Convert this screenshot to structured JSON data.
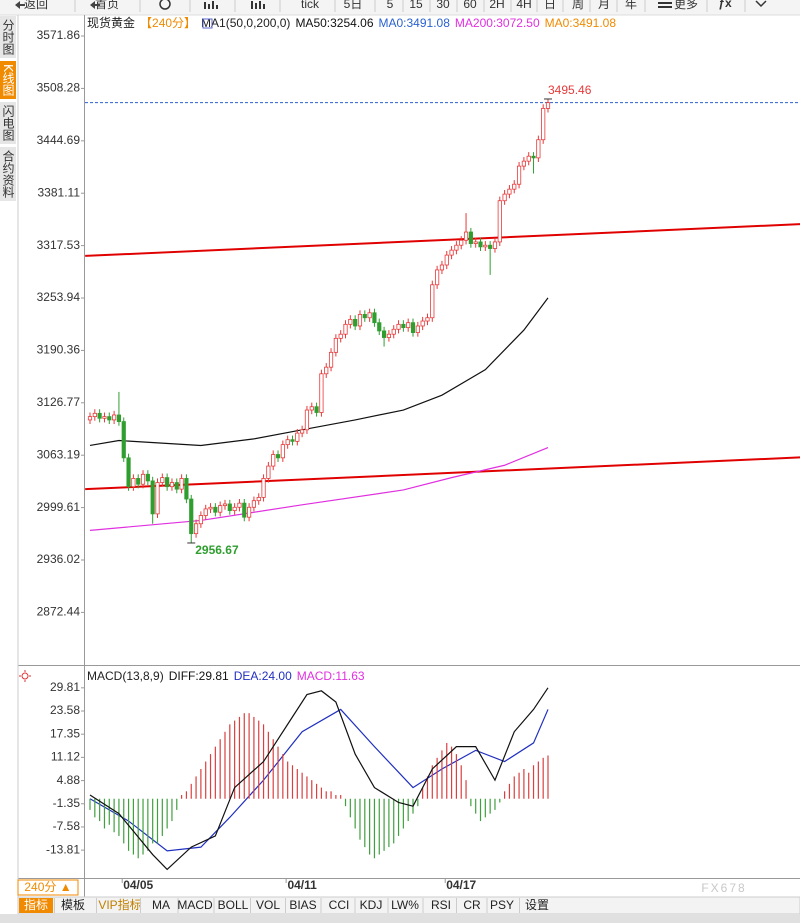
{
  "toolbar": {
    "items": [
      "返回",
      "首页",
      "tick",
      "5日",
      "5",
      "15",
      "30",
      "60",
      "2H",
      "4H",
      "日",
      "周",
      "月",
      "年",
      "更多"
    ]
  },
  "sidebar": {
    "tabs": [
      "分时图",
      "K线图",
      "闪电图",
      "合约资料"
    ],
    "active": 1
  },
  "chart_data": [
    {
      "type": "candlestick",
      "title": "现货黄金",
      "period": "【240分】",
      "indicator": "MA1(50,0,200,0)",
      "up_color": "#e8393a",
      "down_color": "#2f9e2f",
      "grid": false,
      "ylim": [
        2808.6,
        3591.3
      ],
      "yticks": [
        3571.86,
        3508.28,
        3444.69,
        3381.11,
        3317.53,
        3253.94,
        3190.36,
        3126.77,
        3063.19,
        2999.61,
        2936.02,
        2872.44
      ],
      "open": [
        3106,
        3110,
        3114,
        3108,
        3110,
        3106,
        3112,
        3104,
        3060,
        3025,
        3035,
        3028,
        3040,
        3032,
        2992,
        3030,
        3036,
        3025,
        3030,
        3022,
        3035,
        3010,
        2968,
        2980,
        2990,
        2998,
        3000,
        2994,
        3002,
        3004,
        2996,
        3000,
        3005,
        2988,
        3000,
        3008,
        3012,
        3035,
        3050,
        3064,
        3060,
        3076,
        3082,
        3080,
        3090,
        3094,
        3118,
        3122,
        3115,
        3162,
        3170,
        3188,
        3205,
        3210,
        3222,
        3228,
        3220,
        3234,
        3230,
        3236,
        3224,
        3214,
        3206,
        3210,
        3216,
        3222,
        3218,
        3224,
        3212,
        3220,
        3226,
        3230,
        3270,
        3288,
        3294,
        3306,
        3312,
        3318,
        3324,
        3334,
        3320,
        3322,
        3316,
        3318,
        3314,
        3322,
        3372,
        3380,
        3386,
        3392,
        3414,
        3420,
        3426,
        3424,
        3446,
        3484
      ],
      "high": [
        3115,
        3119,
        3119,
        3115,
        3115,
        3117,
        3140,
        3109,
        3065,
        3040,
        3040,
        3045,
        3045,
        3037,
        3035,
        3041,
        3041,
        3035,
        3035,
        3040,
        3040,
        3015,
        2985,
        2995,
        3003,
        3005,
        3005,
        3007,
        3009,
        3009,
        3005,
        3010,
        3010,
        3005,
        3013,
        3017,
        3040,
        3055,
        3069,
        3069,
        3081,
        3087,
        3087,
        3095,
        3099,
        3123,
        3127,
        3127,
        3167,
        3175,
        3193,
        3210,
        3215,
        3227,
        3233,
        3233,
        3239,
        3239,
        3241,
        3241,
        3229,
        3219,
        3215,
        3221,
        3227,
        3227,
        3229,
        3229,
        3225,
        3231,
        3235,
        3275,
        3293,
        3299,
        3311,
        3317,
        3323,
        3329,
        3357,
        3339,
        3327,
        3327,
        3323,
        3323,
        3327,
        3377,
        3385,
        3391,
        3397,
        3419,
        3425,
        3431,
        3431,
        3451,
        3489,
        3495.46
      ],
      "low": [
        3101,
        3105,
        3103,
        3103,
        3101,
        3101,
        3099,
        3055,
        3020,
        3020,
        3023,
        3023,
        3027,
        2980,
        2987,
        3025,
        3020,
        3020,
        3017,
        3017,
        3005,
        2956.67,
        2963,
        2975,
        2985,
        2993,
        2989,
        2989,
        2997,
        2991,
        2991,
        2995,
        2983,
        2983,
        2995,
        3003,
        3007,
        3030,
        3045,
        3055,
        3055,
        3071,
        3075,
        3075,
        3085,
        3089,
        3113,
        3110,
        3110,
        3157,
        3165,
        3183,
        3200,
        3205,
        3217,
        3215,
        3215,
        3225,
        3225,
        3219,
        3209,
        3195,
        3201,
        3205,
        3211,
        3213,
        3213,
        3207,
        3207,
        3215,
        3221,
        3225,
        3265,
        3283,
        3289,
        3301,
        3307,
        3313,
        3319,
        3315,
        3315,
        3311,
        3311,
        3282,
        3309,
        3317,
        3367,
        3375,
        3381,
        3387,
        3409,
        3415,
        3405,
        3419,
        3441,
        3479
      ],
      "close": [
        3110,
        3114,
        3108,
        3110,
        3106,
        3112,
        3104,
        3060,
        3025,
        3035,
        3028,
        3040,
        3032,
        2992,
        3030,
        3036,
        3025,
        3030,
        3022,
        3035,
        3010,
        2968,
        2980,
        2990,
        2998,
        3000,
        2994,
        3002,
        3004,
        2996,
        3000,
        3005,
        2988,
        3000,
        3008,
        3012,
        3035,
        3050,
        3064,
        3060,
        3076,
        3082,
        3080,
        3090,
        3094,
        3118,
        3122,
        3115,
        3162,
        3170,
        3188,
        3205,
        3210,
        3222,
        3228,
        3220,
        3234,
        3230,
        3236,
        3224,
        3214,
        3206,
        3210,
        3216,
        3222,
        3218,
        3224,
        3212,
        3220,
        3226,
        3230,
        3270,
        3288,
        3294,
        3306,
        3312,
        3318,
        3324,
        3334,
        3320,
        3322,
        3316,
        3318,
        3314,
        3322,
        3372,
        3380,
        3386,
        3392,
        3414,
        3420,
        3426,
        3424,
        3446,
        3484,
        3491
      ],
      "series": [
        {
          "name": "MA50:3254.06",
          "color": "#111111",
          "x": [
            0,
            6,
            23,
            34,
            44,
            55,
            65,
            73,
            82,
            90,
            95
          ],
          "values": [
            3075,
            3081,
            3075,
            3083,
            3094,
            3106,
            3118,
            3136,
            3167,
            3215,
            3254.06
          ]
        },
        {
          "name": "MA0:3491.08",
          "color": "#2a62d0",
          "value": 3491.08
        },
        {
          "name": "MA200:3072.50",
          "color": "#e030e0",
          "x": [
            0,
            23,
            44,
            65,
            75,
            86,
            95
          ],
          "values": [
            2972,
            2984,
            3003,
            3021,
            3036,
            3051,
            3072.5
          ]
        },
        {
          "name": "MA0:3491.08",
          "color": "#f08a00"
        }
      ],
      "trend_lines": [
        {
          "color": "#e00000",
          "x": [
            -1,
            149
          ],
          "values": [
            3305,
            3344
          ]
        },
        {
          "color": "#e00000",
          "x": [
            -1,
            149
          ],
          "values": [
            3022,
            3061
          ]
        }
      ]
    },
    {
      "type": "macd",
      "title": "MACD(13,8,9)",
      "period_selector": "240分 ▲",
      "ylim": [
        -21.3,
        34.6
      ],
      "yticks": [
        29.81,
        23.58,
        17.35,
        11.12,
        4.88,
        -1.35,
        -7.58,
        -13.81
      ],
      "categories": [
        null,
        null,
        null,
        null,
        null,
        null,
        null,
        null,
        null,
        null,
        "04/05",
        null,
        null,
        null,
        null,
        null,
        null,
        null,
        null,
        null,
        null,
        null,
        null,
        null,
        null,
        null,
        null,
        null,
        null,
        null,
        null,
        null,
        null,
        null,
        null,
        null,
        null,
        null,
        null,
        null,
        null,
        null,
        null,
        null,
        "04/11",
        null,
        null,
        null,
        null,
        null,
        null,
        null,
        null,
        null,
        null,
        null,
        null,
        null,
        null,
        null,
        null,
        null,
        null,
        null,
        null,
        null,
        null,
        null,
        null,
        null,
        null,
        null,
        null,
        null,
        null,
        null,
        null,
        "04/17",
        null,
        null,
        null,
        null,
        null,
        null,
        null,
        null,
        null,
        null,
        null,
        null,
        null,
        null,
        null,
        null,
        null,
        null
      ],
      "series": [
        {
          "name": "DIFF:29.81",
          "color": "#111111",
          "x": [
            0,
            6,
            13,
            16,
            21,
            26,
            30,
            36,
            42,
            45,
            48,
            51,
            55,
            59,
            64,
            67,
            71,
            76,
            80,
            84,
            88,
            92,
            95
          ],
          "values": [
            1,
            -4,
            -15,
            -19,
            -13,
            -10,
            3,
            10,
            22,
            28,
            29,
            26,
            12,
            3,
            -1,
            -2,
            8,
            14,
            14,
            5,
            18,
            24,
            29.81
          ]
        },
        {
          "name": "DEA:24.00",
          "color": "#2030c0",
          "x": [
            0,
            8,
            16,
            23,
            29,
            36,
            44,
            52,
            59,
            67,
            73,
            80,
            86,
            92,
            95
          ],
          "values": [
            0,
            -6,
            -14,
            -13,
            -5,
            5,
            18,
            24,
            14,
            3,
            8,
            13,
            10,
            15,
            24
          ]
        },
        {
          "name": "MACD:11.63",
          "color": "#e030e0",
          "up_color": "#d94040",
          "down_color": "#40a040",
          "values": [
            -3,
            -5,
            -6,
            -8,
            -7,
            -9,
            -10,
            -12,
            -14,
            -15,
            -16,
            -15,
            -14,
            -12,
            -12,
            -10,
            -8,
            -6,
            -3,
            1,
            2,
            4,
            6,
            8,
            10,
            12,
            14,
            16,
            18,
            20,
            21,
            22,
            23,
            23,
            22,
            21,
            20,
            18,
            16,
            14,
            12,
            10,
            9,
            8,
            7,
            6,
            5,
            4,
            3,
            2,
            2,
            1,
            1,
            -2,
            -5,
            -8,
            -11,
            -13,
            -15,
            -16,
            -15,
            -14,
            -13,
            -12,
            -10,
            -8,
            -6,
            -4,
            -2,
            3,
            6,
            9,
            11,
            13,
            15,
            14,
            12,
            9,
            5,
            -2,
            -4,
            -6,
            -5,
            -4,
            -3,
            -1,
            2,
            4,
            6,
            7,
            8,
            7,
            9,
            10,
            11,
            11.63
          ]
        }
      ]
    }
  ],
  "bottom_tabs": {
    "items": [
      "指标",
      "模板",
      "VIP指标",
      "MA",
      "MACD",
      "BOLL",
      "VOL",
      "BIAS",
      "CCI",
      "KDJ",
      "LW%",
      "RSI",
      "CR",
      "PSY",
      "设置"
    ],
    "active": 0
  },
  "watermark": "FX678"
}
